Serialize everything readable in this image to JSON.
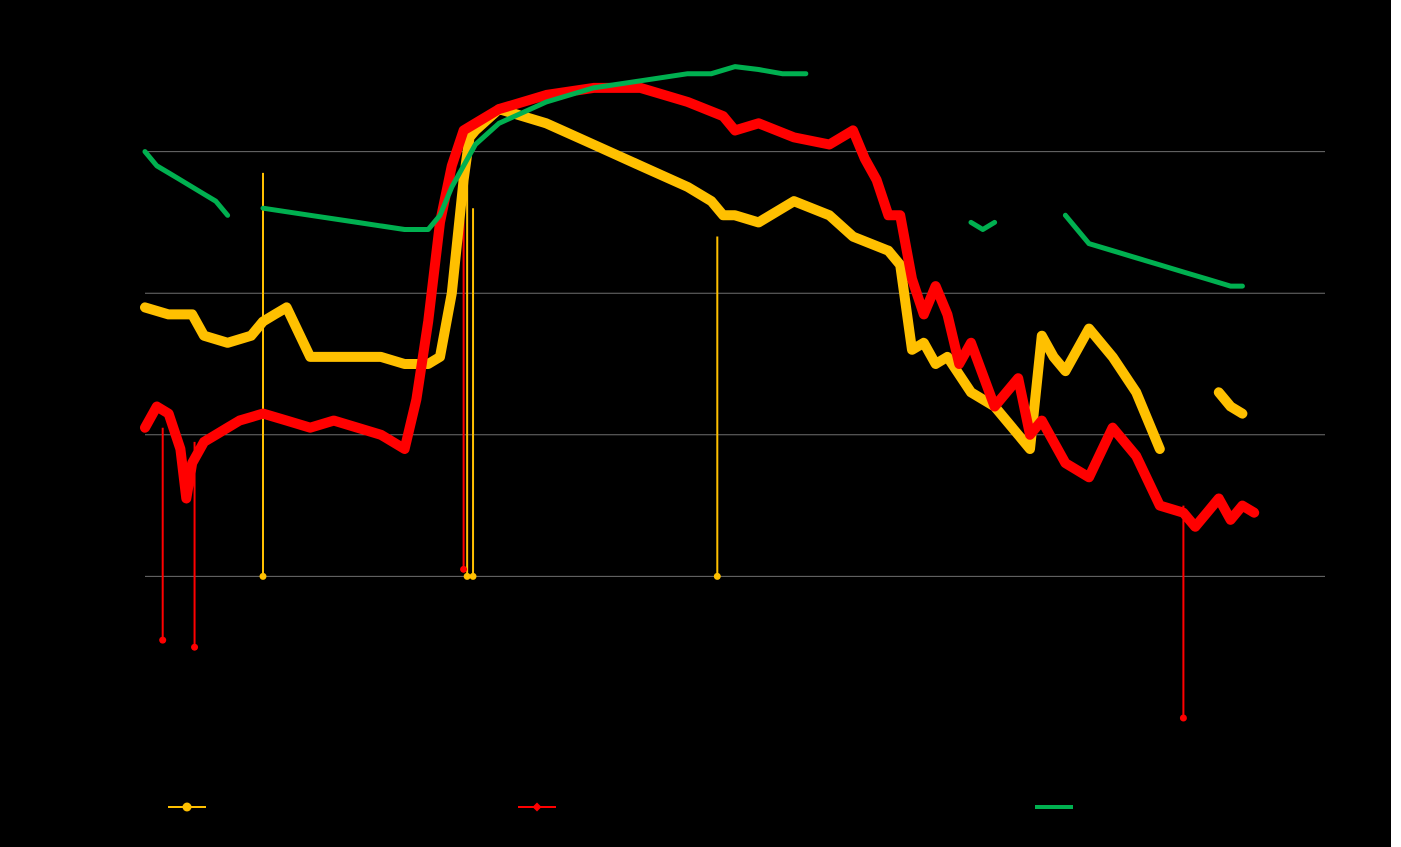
{
  "chart_data": {
    "type": "line",
    "title": "",
    "xlabel": "",
    "ylabel": "",
    "grid": true,
    "legend_position": "bottom",
    "xlim": [
      0,
      100
    ],
    "ylim": [
      0,
      5
    ],
    "y_gridlines": [
      1,
      2,
      3,
      4
    ],
    "series": [
      {
        "key": "yellow",
        "name": "",
        "color": "#ffc000",
        "marker": "circle",
        "x": [
          0,
          2,
          4,
          5,
          7,
          9,
          10,
          11,
          12,
          14,
          15,
          16,
          20,
          22,
          24,
          25,
          26,
          27,
          27.5,
          28,
          30,
          34,
          38,
          42,
          46,
          48,
          49,
          50,
          52,
          55,
          58,
          60,
          63,
          64,
          65,
          66,
          67,
          68,
          70,
          72,
          74,
          75,
          76,
          77,
          78,
          80,
          82,
          84,
          86,
          88,
          90,
          91,
          92,
          93
        ],
        "y": [
          2.9,
          2.85,
          2.85,
          2.7,
          2.65,
          2.7,
          2.8,
          2.85,
          2.9,
          2.55,
          2.55,
          2.55,
          2.55,
          2.5,
          2.5,
          2.55,
          3.0,
          3.8,
          4.1,
          4.15,
          4.3,
          4.2,
          4.05,
          3.9,
          3.75,
          3.65,
          3.55,
          3.55,
          3.5,
          3.65,
          3.55,
          3.4,
          3.3,
          3.2,
          2.6,
          2.65,
          2.5,
          2.55,
          2.3,
          2.2,
          2.0,
          1.9,
          2.7,
          2.55,
          2.45,
          2.75,
          2.55,
          2.3,
          1.9,
          null,
          null,
          2.3,
          2.2,
          2.15
        ]
      },
      {
        "key": "red",
        "name": "",
        "color": "#ff0000",
        "marker": "diamond",
        "x": [
          0,
          1,
          2,
          3,
          3.5,
          4,
          5,
          6,
          7,
          8,
          10,
          12,
          14,
          16,
          18,
          20,
          22,
          23,
          24,
          25,
          26,
          27,
          28,
          30,
          34,
          38,
          42,
          46,
          49,
          50,
          52,
          55,
          58,
          60,
          61,
          62,
          63,
          64,
          65,
          66,
          67,
          68,
          69,
          70,
          72,
          74,
          75,
          76,
          78,
          80,
          82,
          84,
          86,
          88,
          89,
          90,
          91,
          92,
          93,
          94
        ],
        "y": [
          2.05,
          2.2,
          2.15,
          1.9,
          1.55,
          1.8,
          1.95,
          2.0,
          2.05,
          2.1,
          2.15,
          2.1,
          2.05,
          2.1,
          2.05,
          2.0,
          1.9,
          2.25,
          2.8,
          3.5,
          3.9,
          4.15,
          4.2,
          4.3,
          4.4,
          4.45,
          4.45,
          4.35,
          4.25,
          4.15,
          4.2,
          4.1,
          4.05,
          4.15,
          3.95,
          3.8,
          3.55,
          3.55,
          3.1,
          2.85,
          3.05,
          2.85,
          2.5,
          2.65,
          2.2,
          2.4,
          2.0,
          2.1,
          1.8,
          1.7,
          2.05,
          1.85,
          1.5,
          1.45,
          1.35,
          1.45,
          1.55,
          1.4,
          1.5,
          1.45
        ]
      },
      {
        "key": "green",
        "name": "",
        "color": "#00b050",
        "marker": "none",
        "x": [
          0,
          1,
          2,
          3,
          4,
          5,
          6,
          7,
          null,
          10,
          14,
          18,
          22,
          24,
          25,
          26,
          27,
          28,
          30,
          34,
          38,
          42,
          46,
          48,
          50,
          52,
          54,
          56,
          null,
          70,
          71,
          72,
          null,
          78,
          79,
          80,
          82,
          84,
          86,
          88,
          90,
          92,
          93
        ],
        "y": [
          4.0,
          3.9,
          3.85,
          3.8,
          3.75,
          3.7,
          3.65,
          3.55,
          null,
          3.6,
          3.55,
          3.5,
          3.45,
          3.45,
          3.55,
          3.75,
          3.9,
          4.05,
          4.2,
          4.35,
          4.45,
          4.5,
          4.55,
          4.55,
          4.6,
          4.58,
          4.55,
          4.55,
          null,
          3.5,
          3.45,
          3.5,
          null,
          3.55,
          3.45,
          3.35,
          3.3,
          3.25,
          3.2,
          3.15,
          3.1,
          3.05,
          3.05
        ]
      }
    ],
    "spikes": [
      {
        "series": "yellow",
        "x": 10.0,
        "from": 3.85,
        "to": 1.0
      },
      {
        "series": "yellow",
        "x": 27.3,
        "from": 4.0,
        "to": 1.0
      },
      {
        "series": "yellow",
        "x": 27.8,
        "from": 3.6,
        "to": 1.0
      },
      {
        "series": "yellow",
        "x": 48.5,
        "from": 3.4,
        "to": 1.0
      },
      {
        "series": "red",
        "x": 1.5,
        "from": 2.05,
        "to": 0.55
      },
      {
        "series": "red",
        "x": 4.2,
        "from": 1.95,
        "to": 0.5
      },
      {
        "series": "red",
        "x": 27.0,
        "from": 3.8,
        "to": 1.05
      },
      {
        "series": "red",
        "x": 88.0,
        "from": 1.5,
        "to": 0.0
      }
    ]
  }
}
